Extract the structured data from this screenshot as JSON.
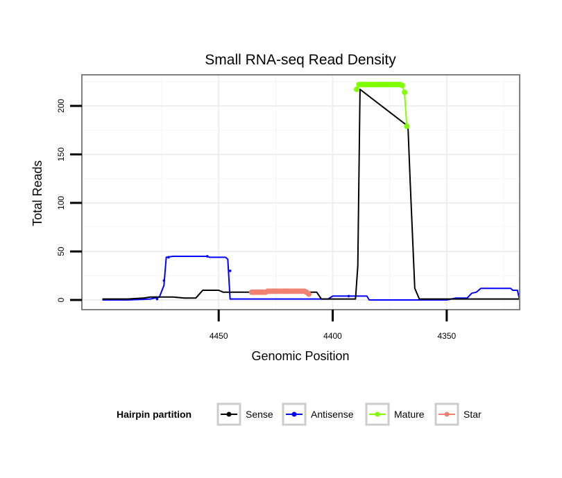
{
  "chart_data": {
    "type": "line",
    "title": "Small RNA-seq Read Density",
    "xlabel": "Genomic Position",
    "ylabel": "Total Reads",
    "xlim": [
      4510,
      4318
    ],
    "ylim": [
      -10,
      232
    ],
    "x_reversed": true,
    "x_ticks": [
      4450,
      4400,
      4350
    ],
    "x_tick_labels": [
      "4450",
      "4400",
      "4350"
    ],
    "y_ticks": [
      0,
      50,
      100,
      150,
      200
    ],
    "y_tick_labels": [
      "0",
      "50",
      "100",
      "150",
      "200"
    ],
    "grid": true,
    "legend": {
      "title": "Hairpin partition",
      "position": "bottom",
      "entries": [
        {
          "label": "Sense",
          "color": "#000000"
        },
        {
          "label": "Antisense",
          "color": "#0000ff"
        },
        {
          "label": "Mature",
          "color": "#7fff00"
        },
        {
          "label": "Star",
          "color": "#f08070"
        }
      ]
    },
    "series": [
      {
        "name": "Sense",
        "color": "#000000",
        "style": "line",
        "x": [
          4501,
          4490,
          4483,
          4480,
          4475,
          4470,
          4465,
          4460,
          4457,
          4454,
          4450,
          4448,
          4445,
          4410,
          4407,
          4405,
          4400,
          4399,
          4395,
          4390,
          4389,
          4388,
          4367,
          4366,
          4364,
          4362,
          4360,
          4350,
          4340,
          4318
        ],
        "y": [
          1,
          1,
          2,
          3,
          3,
          3,
          2,
          2,
          10,
          10,
          10,
          8,
          8,
          8,
          8,
          1,
          1,
          1,
          1,
          1,
          35,
          217,
          179,
          120,
          12,
          1,
          1,
          1,
          1,
          1
        ]
      },
      {
        "name": "Antisense",
        "color": "#0000ff",
        "style": "line",
        "x": [
          4501,
          4490,
          4480,
          4476,
          4474,
          4473,
          4470,
          4455,
          4454,
          4447,
          4446,
          4445,
          4440,
          4405,
          4402,
          4400,
          4385,
          4384,
          4380,
          4350,
          4346,
          4341,
          4339,
          4337,
          4335,
          4330,
          4322,
          4321,
          4319,
          4318
        ],
        "y": [
          0,
          0,
          1,
          3,
          15,
          44,
          45,
          45,
          44,
          44,
          42,
          1,
          1,
          1,
          1,
          4,
          4,
          0,
          0,
          0,
          2,
          2,
          7,
          8,
          12,
          12,
          12,
          10,
          10,
          0
        ],
        "markers": [
          {
            "x": 4477,
            "y": 1
          },
          {
            "x": 4474,
            "y": 20
          },
          {
            "x": 4472,
            "y": 44
          },
          {
            "x": 4455,
            "y": 45
          },
          {
            "x": 4445,
            "y": 30
          },
          {
            "x": 4393,
            "y": 4
          }
        ]
      },
      {
        "name": "Mature",
        "color": "#7fff00",
        "style": "points",
        "x": [
          4389.5,
          4388.5,
          4387.5,
          4386.5,
          4385.5,
          4384.5,
          4383.5,
          4382.5,
          4381.5,
          4380.5,
          4379.5,
          4378.5,
          4377.5,
          4376.5,
          4375.5,
          4374.5,
          4373.5,
          4372.5,
          4371.5,
          4370.5,
          4369.5,
          4368.5,
          4367.5
        ],
        "y": [
          217,
          222,
          222,
          222,
          222,
          222,
          222,
          222,
          222,
          222,
          222,
          222,
          222,
          222,
          222,
          222,
          222,
          222,
          222,
          222,
          221,
          214,
          179
        ]
      },
      {
        "name": "Star",
        "color": "#f08070",
        "style": "points",
        "x": [
          4435.5,
          4434.5,
          4433.5,
          4432.5,
          4431.5,
          4430.5,
          4429.5,
          4428.5,
          4427.5,
          4426.5,
          4425.5,
          4424.5,
          4423.5,
          4422.5,
          4421.5,
          4420.5,
          4419.5,
          4418.5,
          4417.5,
          4416.5,
          4415.5,
          4414.5,
          4413.5,
          4412.5,
          4411.5,
          4410.5
        ],
        "y": [
          8,
          8,
          8,
          8,
          8,
          8,
          8,
          9,
          9,
          9,
          9,
          9,
          9,
          9,
          9,
          9,
          9,
          9,
          9,
          9,
          9,
          9,
          9,
          9,
          8,
          6
        ]
      }
    ]
  }
}
